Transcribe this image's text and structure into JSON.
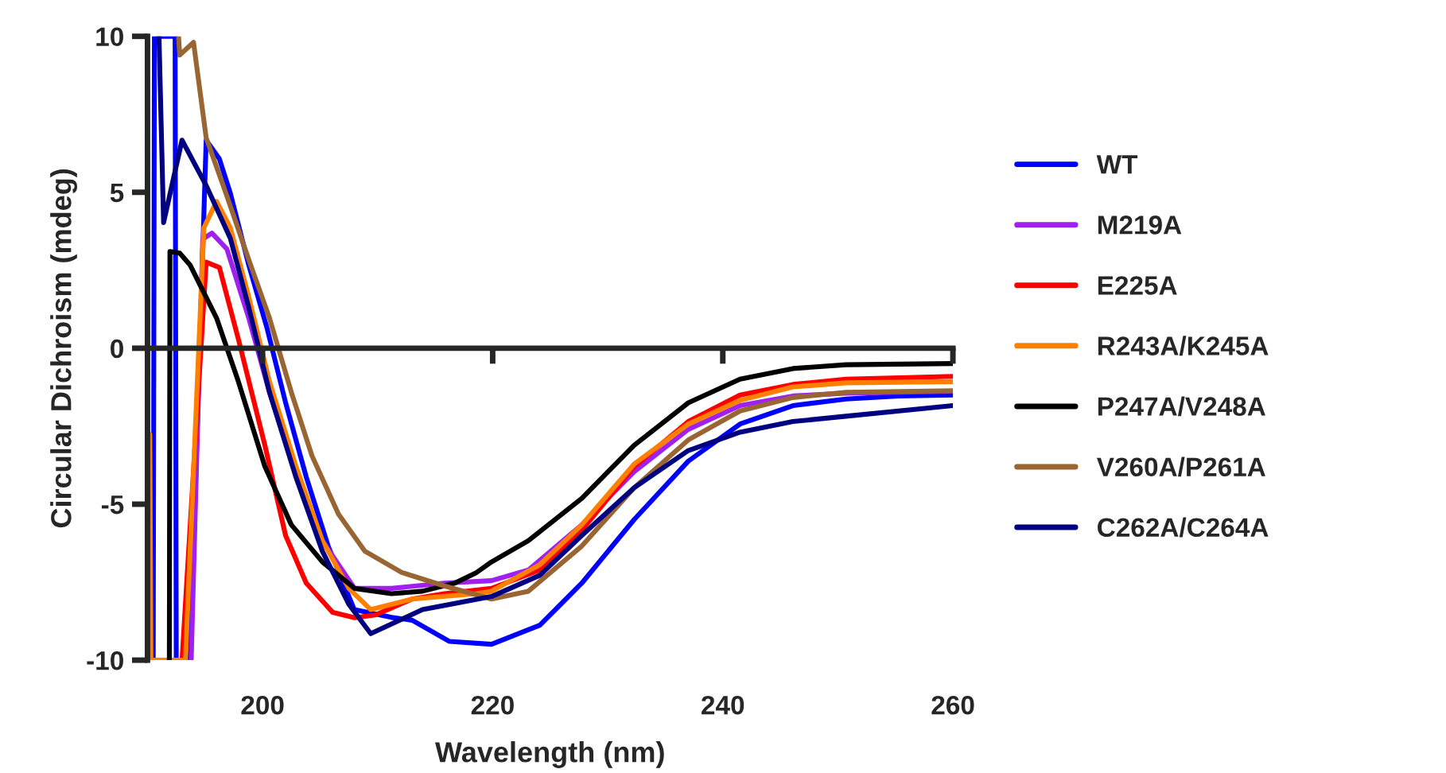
{
  "chart_data": {
    "type": "line",
    "xlabel": "Wavelength (nm)",
    "ylabel": "Circular Dichroism (mdeg)",
    "xlim": [
      190,
      260
    ],
    "xticks": [
      200,
      220,
      240,
      260
    ],
    "ylim": [
      -10,
      10
    ],
    "yticks": [
      -10,
      -5,
      0,
      5,
      10
    ],
    "legend": "right",
    "marker": "none",
    "line_style": "solid",
    "series": [
      {
        "name": "WT",
        "color": "#0000ff",
        "x": [
          190.5,
          190.6,
          192.4,
          192.5,
          193.7,
          195.1,
          196.25,
          197.2,
          198.8,
          200.4,
          202,
          203.8,
          205.7,
          207.97,
          211.2,
          213.0,
          216.25,
          219.9,
          224.1,
          227.75,
          232.3,
          237.0,
          241.5,
          246.1,
          250.7,
          255.3,
          260
        ],
        "values": [
          -10,
          10,
          10,
          -10,
          -10,
          6.67,
          6.07,
          4.97,
          2.67,
          0.63,
          -1.74,
          -4.13,
          -6.34,
          -8.38,
          -8.63,
          -8.72,
          -9.4,
          -9.49,
          -8.88,
          -7.53,
          -5.49,
          -3.62,
          -2.43,
          -1.84,
          -1.63,
          -1.53,
          -1.5
        ]
      },
      {
        "name": "M219A",
        "color": "#a020f0",
        "x": [
          193.8,
          194.8,
          195.6,
          196.9,
          198.8,
          200.6,
          202.9,
          205.2,
          208.0,
          211.2,
          215.8,
          219.9,
          223.1,
          227.75,
          232.3,
          237.0,
          241.5,
          246.1,
          250.7,
          260
        ],
        "values": [
          -10,
          3.5,
          3.69,
          3.18,
          0.97,
          -1.41,
          -3.96,
          -6.17,
          -7.7,
          -7.7,
          -7.53,
          -7.45,
          -7.11,
          -5.66,
          -3.96,
          -2.6,
          -1.84,
          -1.53,
          -1.44,
          -1.38
        ]
      },
      {
        "name": "E225A",
        "color": "#ff0000",
        "x": [
          193.0,
          195.1,
          196.25,
          197.9,
          200.2,
          202.0,
          203.8,
          206.1,
          208.0,
          209.8,
          213.0,
          215.8,
          219.9,
          224.1,
          227.75,
          232.3,
          237.0,
          241.5,
          246.1,
          250.7,
          260
        ],
        "values": [
          -10,
          2.76,
          2.59,
          0.29,
          -3.11,
          -6.0,
          -7.53,
          -8.47,
          -8.64,
          -8.55,
          -8.04,
          -7.87,
          -7.7,
          -7.11,
          -5.83,
          -3.79,
          -2.35,
          -1.5,
          -1.16,
          -0.99,
          -0.9
        ]
      },
      {
        "name": "R243A/K245A",
        "color": "#ff8000",
        "x": [
          190.2,
          190.3,
          193.3,
          194.9,
          196.0,
          197.2,
          198.8,
          200.6,
          202.9,
          205.2,
          207.5,
          209.4,
          213.0,
          218.6,
          219.9,
          224.1,
          227.75,
          232.3,
          237.0,
          241.5,
          246.1,
          250.7,
          260
        ],
        "values": [
          -2.76,
          -10,
          -10,
          3.86,
          4.71,
          3.86,
          1.65,
          -1.07,
          -3.79,
          -6.17,
          -7.7,
          -8.38,
          -8.04,
          -7.87,
          -7.79,
          -6.94,
          -5.66,
          -3.71,
          -2.43,
          -1.67,
          -1.24,
          -1.11,
          -1.07
        ]
      },
      {
        "name": "P247A/V248A",
        "color": "#000000",
        "x": [
          191.9,
          191.95,
          192.8,
          193.7,
          196.0,
          197.9,
          200.2,
          202.5,
          205.2,
          208.0,
          211.2,
          213.9,
          216.7,
          218.6,
          219.9,
          223.1,
          227.75,
          232.3,
          237.0,
          241.5,
          246.1,
          250.7,
          260
        ],
        "values": [
          -10,
          3.1,
          3.05,
          2.67,
          0.97,
          -1.07,
          -3.79,
          -5.66,
          -6.85,
          -7.7,
          -7.87,
          -7.79,
          -7.53,
          -7.19,
          -6.85,
          -6.17,
          -4.81,
          -3.11,
          -1.75,
          -0.99,
          -0.65,
          -0.53,
          -0.49
        ]
      },
      {
        "name": "V260A/P261A",
        "color": "#996633",
        "x": [
          192.7,
          192.8,
          194.0,
          195.1,
          196.9,
          198.8,
          200.6,
          202.5,
          204.3,
          206.6,
          208.9,
          212.1,
          215.8,
          219.9,
          223.1,
          227.75,
          232.3,
          237.0,
          241.5,
          246.1,
          250.7,
          260
        ],
        "values": [
          10,
          9.4,
          9.81,
          6.75,
          4.88,
          2.84,
          0.97,
          -1.41,
          -3.45,
          -5.32,
          -6.51,
          -7.19,
          -7.62,
          -8.04,
          -7.79,
          -6.34,
          -4.47,
          -2.94,
          -2.01,
          -1.58,
          -1.41,
          -1.36
        ]
      },
      {
        "name": "C262A/C264A",
        "color": "#000080",
        "x": [
          191.0,
          191.4,
          193.0,
          195.1,
          197.2,
          198.8,
          200.6,
          202.9,
          205.2,
          207.5,
          209.4,
          213.9,
          219.9,
          224.1,
          227.75,
          232.3,
          237.0,
          241.5,
          246.1,
          250.7,
          260
        ],
        "values": [
          10,
          4.03,
          6.67,
          5.22,
          3.52,
          1.31,
          -1.41,
          -4.13,
          -6.51,
          -8.21,
          -9.15,
          -8.38,
          -7.96,
          -7.28,
          -6.0,
          -4.47,
          -3.28,
          -2.69,
          -2.35,
          -2.18,
          -1.84
        ]
      }
    ]
  }
}
